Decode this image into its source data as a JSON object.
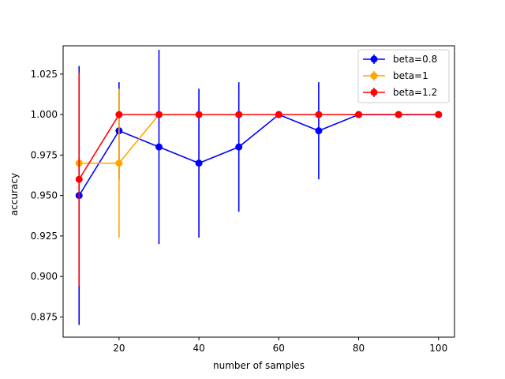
{
  "chart_data": {
    "type": "line",
    "xlabel": "number of samples",
    "ylabel": "accuracy",
    "xlim": [
      6,
      104
    ],
    "ylim": [
      0.8625,
      1.0425
    ],
    "x_ticks": [
      20,
      40,
      60,
      80,
      100
    ],
    "y_ticks": [
      0.875,
      0.9,
      0.925,
      0.95,
      0.975,
      1.0,
      1.025
    ],
    "x_tick_labels": [
      "20",
      "40",
      "60",
      "80",
      "100"
    ],
    "y_tick_labels": [
      "0.875",
      "0.900",
      "0.925",
      "0.950",
      "0.975",
      "1.000",
      "1.025"
    ],
    "grid": false,
    "legend_position": "top-right",
    "series": [
      {
        "name": "beta=0.8",
        "color": "#0000ff",
        "x": [
          10,
          20,
          30,
          40,
          50,
          60,
          70,
          80,
          90,
          100
        ],
        "y": [
          0.95,
          0.99,
          0.98,
          0.97,
          0.98,
          1.0,
          0.99,
          1.0,
          1.0,
          1.0
        ],
        "err": [
          0.08,
          0.03,
          0.06,
          0.046,
          0.04,
          0.0,
          0.03,
          0.0,
          0.0,
          0.0
        ]
      },
      {
        "name": "beta=1",
        "color": "#ffa500",
        "x": [
          10,
          20,
          30
        ],
        "y": [
          0.97,
          0.97,
          1.0
        ],
        "err": [
          0.0,
          0.046,
          0.0
        ]
      },
      {
        "name": "beta=1.2",
        "color": "#ff0000",
        "x": [
          10,
          20,
          30,
          40,
          50,
          60,
          70,
          80,
          90,
          100
        ],
        "y": [
          0.96,
          1.0,
          1.0,
          1.0,
          1.0,
          1.0,
          1.0,
          1.0,
          1.0,
          1.0
        ],
        "err": [
          0.066,
          0.0,
          0.0,
          0.0,
          0.0,
          0.0,
          0.0,
          0.0,
          0.0,
          0.0
        ]
      }
    ]
  }
}
